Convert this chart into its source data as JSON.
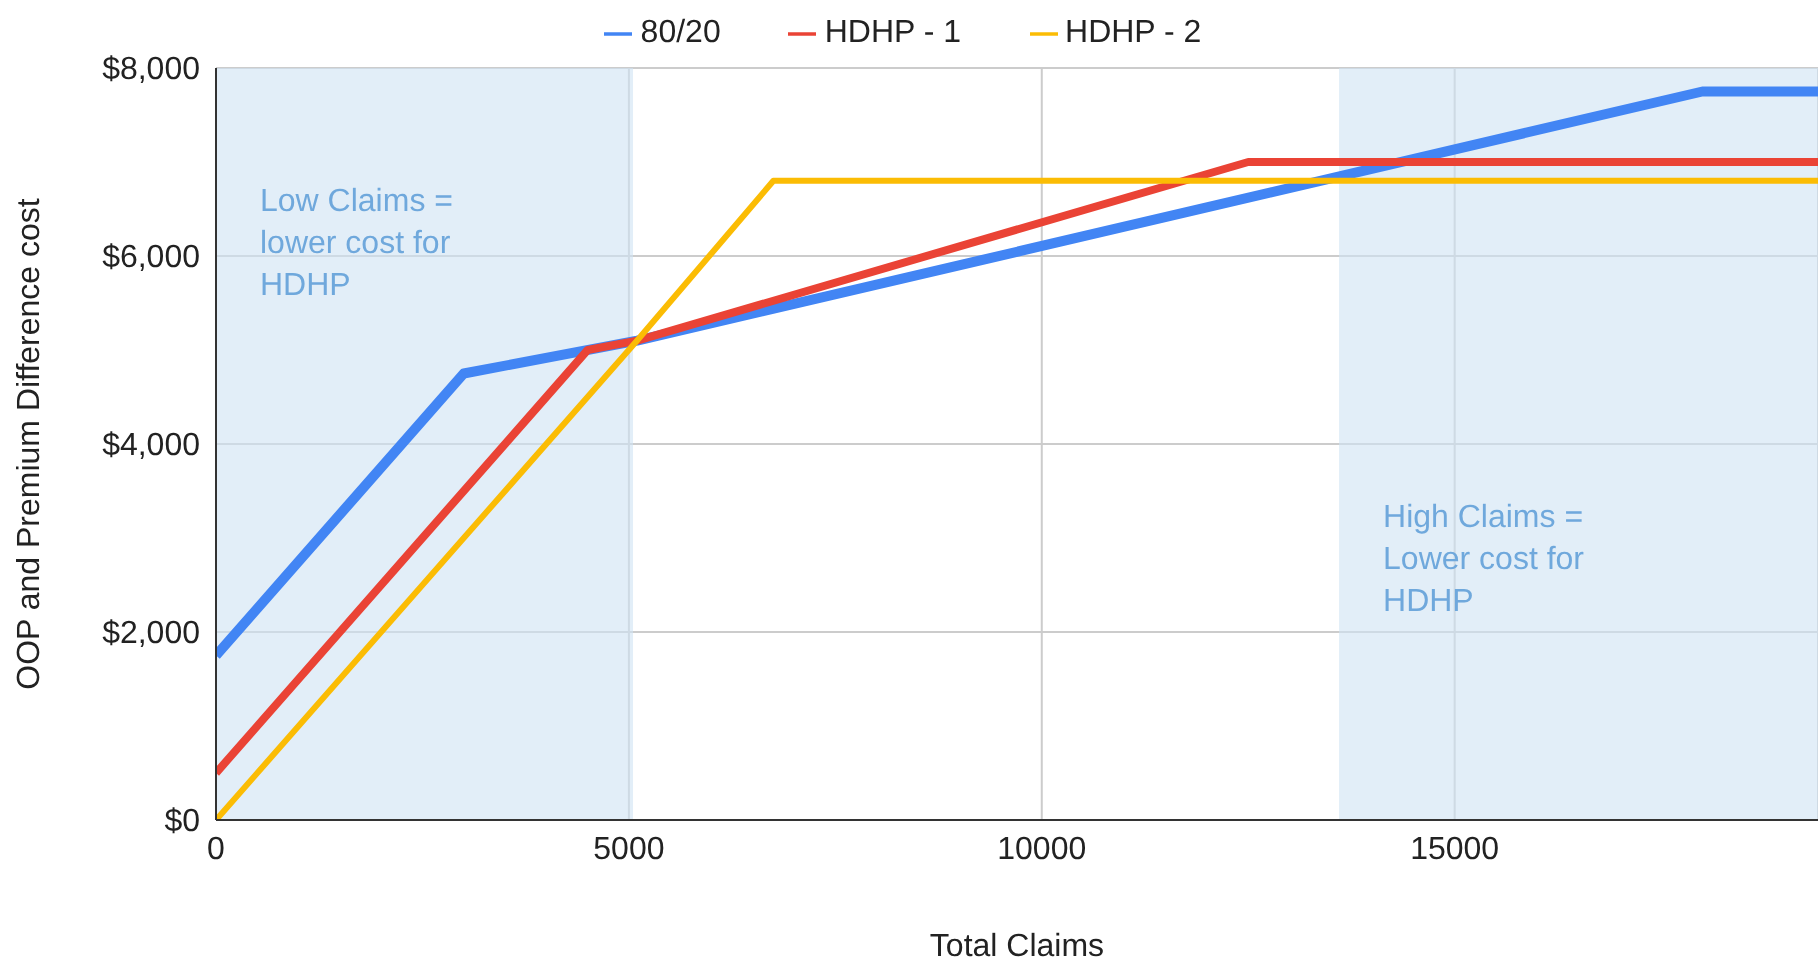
{
  "chart_data": {
    "type": "line",
    "xlabel": "Total Claims",
    "ylabel": "OOP and Premium Difference cost",
    "xlim": [
      0,
      19400
    ],
    "xticks": [
      0,
      5000,
      10000,
      15000
    ],
    "ylim": [
      0,
      8000
    ],
    "yticks": [
      {
        "value": 0,
        "label": "$0"
      },
      {
        "value": 2000,
        "label": "$2,000"
      },
      {
        "value": 4000,
        "label": "$4,000"
      },
      {
        "value": 6000,
        "label": "$6,000"
      },
      {
        "value": 8000,
        "label": "$8,000"
      }
    ],
    "series": [
      {
        "name": "80/20",
        "color": "#4285f4",
        "x": [
          0,
          3000,
          5100,
          18000,
          19400
        ],
        "values": [
          1750,
          4750,
          5100,
          7750,
          7750
        ]
      },
      {
        "name": "HDHP - 1",
        "color": "#ea4335",
        "x": [
          0,
          4500,
          5100,
          12500,
          19400
        ],
        "values": [
          500,
          5000,
          5100,
          7000,
          7000
        ]
      },
      {
        "name": "HDHP - 2",
        "color": "#fbbc04",
        "x": [
          0,
          5100,
          6750,
          19400
        ],
        "values": [
          0,
          5100,
          6800,
          6800
        ]
      }
    ],
    "bands": [
      {
        "axis": "x",
        "from": 0,
        "to": 5050,
        "label": "Low Claims = lower cost for HDHP",
        "color": "#cfe2f3"
      },
      {
        "axis": "x",
        "from": 13600,
        "to": 19400,
        "label": "High Claims = Lower cost for HDHP",
        "color": "#cfe2f3"
      }
    ],
    "grid": true,
    "legend": "top",
    "marker": "none",
    "line_style": "solid"
  }
}
